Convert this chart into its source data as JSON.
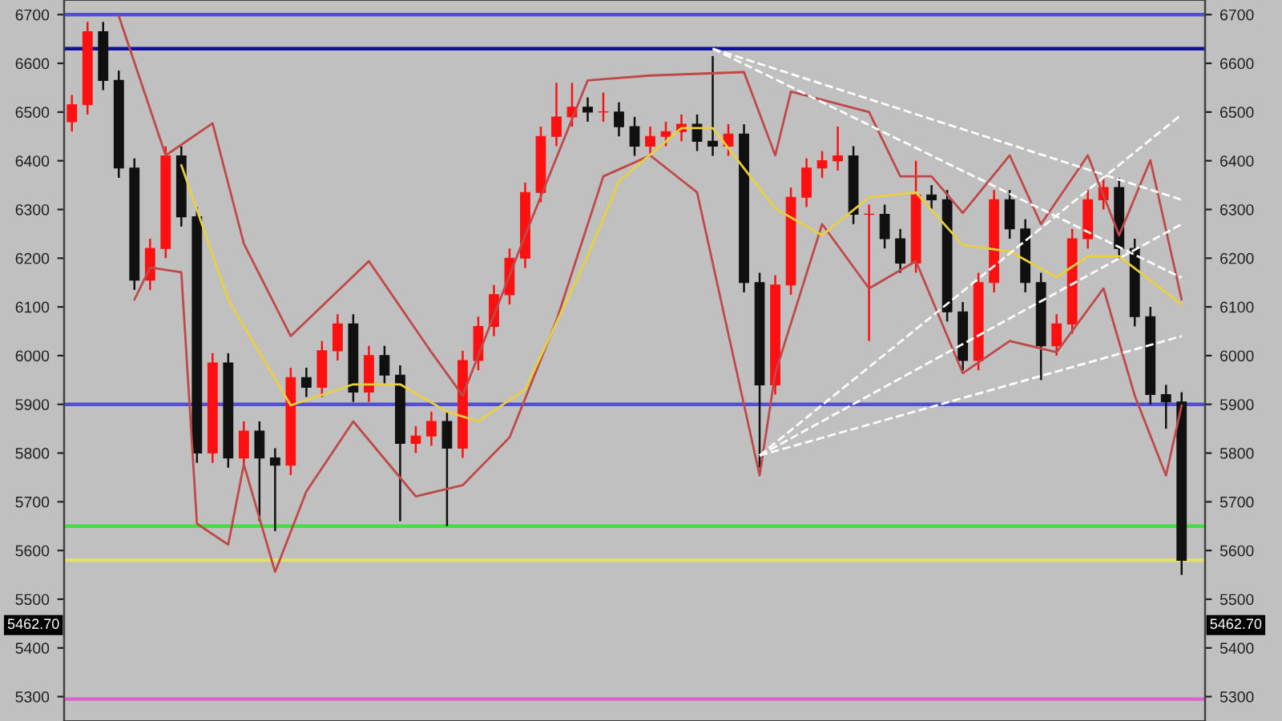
{
  "chart_data": {
    "type": "candlestick",
    "categories": [
      null,
      null,
      null,
      null,
      null,
      null,
      null,
      null,
      null,
      null,
      null,
      null,
      null,
      null,
      null,
      null,
      null,
      null,
      null,
      null,
      null,
      null,
      null,
      null,
      null,
      null,
      null,
      null,
      null,
      null,
      null,
      null,
      null,
      null,
      null,
      null,
      null,
      null,
      null,
      null,
      null,
      null,
      null,
      null,
      null,
      null,
      null,
      null,
      null,
      null,
      null,
      null,
      null,
      null,
      null,
      null,
      null,
      null,
      null,
      null,
      null,
      null,
      null,
      null,
      null,
      null,
      null,
      null,
      null,
      null,
      null,
      null
    ],
    "ohlc": [
      [
        6480,
        6535,
        6460,
        6515
      ],
      [
        6515,
        6685,
        6495,
        6665
      ],
      [
        6665,
        6685,
        6545,
        6565
      ],
      [
        6565,
        6585,
        6365,
        6385
      ],
      [
        6385,
        6405,
        6135,
        6155
      ],
      [
        6155,
        6240,
        6135,
        6220
      ],
      [
        6220,
        6430,
        6200,
        6410
      ],
      [
        6410,
        6430,
        6265,
        6285
      ],
      [
        6285,
        6305,
        5780,
        5800
      ],
      [
        5800,
        6005,
        5780,
        5985
      ],
      [
        5985,
        6005,
        5770,
        5790
      ],
      [
        5790,
        5865,
        5770,
        5845
      ],
      [
        5845,
        5865,
        5660,
        5790
      ],
      [
        5790,
        5810,
        5640,
        5775
      ],
      [
        5775,
        5975,
        5755,
        5955
      ],
      [
        5955,
        5975,
        5915,
        5935
      ],
      [
        5935,
        6030,
        5915,
        6010
      ],
      [
        6010,
        6085,
        5990,
        6065
      ],
      [
        6065,
        6085,
        5905,
        5925
      ],
      [
        5925,
        6020,
        5905,
        6000
      ],
      [
        6000,
        6020,
        5940,
        5960
      ],
      [
        5960,
        5980,
        5660,
        5820
      ],
      [
        5820,
        5855,
        5800,
        5835
      ],
      [
        5835,
        5885,
        5815,
        5865
      ],
      [
        5865,
        5885,
        5650,
        5810
      ],
      [
        5810,
        6010,
        5790,
        5990
      ],
      [
        5990,
        6080,
        5970,
        6060
      ],
      [
        6060,
        6145,
        6040,
        6125
      ],
      [
        6125,
        6220,
        6105,
        6200
      ],
      [
        6200,
        6355,
        6180,
        6335
      ],
      [
        6335,
        6470,
        6315,
        6450
      ],
      [
        6450,
        6560,
        6430,
        6490
      ],
      [
        6490,
        6560,
        6470,
        6510
      ],
      [
        6510,
        6530,
        6480,
        6500
      ],
      [
        6500,
        6540,
        6480,
        6500
      ],
      [
        6500,
        6520,
        6450,
        6470
      ],
      [
        6470,
        6490,
        6410,
        6430
      ],
      [
        6430,
        6470,
        6410,
        6450
      ],
      [
        6450,
        6480,
        6430,
        6460
      ],
      [
        6460,
        6495,
        6440,
        6475
      ],
      [
        6475,
        6495,
        6420,
        6440
      ],
      [
        6440,
        6615,
        6410,
        6430
      ],
      [
        6430,
        6475,
        6410,
        6455
      ],
      [
        6455,
        6475,
        6130,
        6150
      ],
      [
        6150,
        6170,
        5770,
        5940
      ],
      [
        5940,
        6165,
        5920,
        6145
      ],
      [
        6145,
        6345,
        6125,
        6325
      ],
      [
        6325,
        6405,
        6305,
        6385
      ],
      [
        6385,
        6420,
        6365,
        6400
      ],
      [
        6400,
        6470,
        6380,
        6410
      ],
      [
        6410,
        6430,
        6270,
        6290
      ],
      [
        6290,
        6310,
        6030,
        6290
      ],
      [
        6290,
        6310,
        6220,
        6240
      ],
      [
        6240,
        6260,
        6170,
        6190
      ],
      [
        6190,
        6400,
        6170,
        6330
      ],
      [
        6330,
        6350,
        6300,
        6320
      ],
      [
        6320,
        6340,
        6070,
        6090
      ],
      [
        6090,
        6110,
        5970,
        5990
      ],
      [
        5990,
        6170,
        5970,
        6150
      ],
      [
        6150,
        6340,
        6130,
        6320
      ],
      [
        6320,
        6340,
        6240,
        6260
      ],
      [
        6260,
        6280,
        6130,
        6150
      ],
      [
        6150,
        6170,
        5950,
        6020
      ],
      [
        6020,
        6085,
        6000,
        6065
      ],
      [
        6065,
        6260,
        6045,
        6240
      ],
      [
        6240,
        6340,
        6220,
        6320
      ],
      [
        6320,
        6365,
        6300,
        6345
      ],
      [
        6345,
        6365,
        6200,
        6220
      ],
      [
        6220,
        6240,
        6060,
        6080
      ],
      [
        6080,
        6100,
        5900,
        5920
      ],
      [
        5920,
        5940,
        5850,
        5905
      ],
      [
        5905,
        5925,
        5550,
        5580
      ]
    ],
    "series": [
      {
        "type": "line",
        "color": "#c04848",
        "values": [
          null,
          null,
          null,
          6697,
          null,
          null,
          6411,
          null,
          null,
          6477,
          null,
          6230,
          null,
          null,
          6040,
          null,
          null,
          null,
          null,
          6194,
          null,
          null,
          null,
          6007,
          null,
          5918,
          null,
          null,
          null,
          6247,
          null,
          null,
          null,
          6565,
          null,
          null,
          null,
          6575,
          null,
          null,
          null,
          null,
          null,
          6582,
          null,
          6411,
          6542,
          null,
          null,
          null,
          null,
          6500,
          null,
          6368,
          null,
          6368,
          null,
          6293,
          null,
          null,
          6411,
          null,
          6270,
          null,
          null,
          6411,
          null,
          6247,
          null,
          6401,
          null,
          6115
        ]
      },
      {
        "type": "line",
        "color": "#c04848",
        "values": [
          null,
          null,
          null,
          null,
          6115,
          6181,
          null,
          6171,
          5655,
          null,
          5612,
          5777,
          null,
          5556,
          null,
          5721,
          null,
          null,
          5865,
          null,
          null,
          null,
          5711,
          null,
          null,
          5734,
          null,
          null,
          5832,
          null,
          null,
          6072,
          null,
          null,
          6368,
          null,
          null,
          6411,
          null,
          null,
          6335,
          null,
          null,
          null,
          5754,
          5964,
          null,
          null,
          6270,
          null,
          null,
          6138,
          null,
          null,
          6194,
          null,
          null,
          5964,
          null,
          null,
          6030,
          null,
          null,
          6007,
          null,
          null,
          6138,
          null,
          5918,
          null,
          5754,
          5898
        ]
      },
      {
        "type": "line",
        "color": "#e8d040",
        "values": [
          null,
          null,
          null,
          null,
          null,
          null,
          null,
          6391,
          null,
          null,
          6115,
          null,
          null,
          null,
          5898,
          null,
          null,
          null,
          5941,
          null,
          null,
          5941,
          null,
          null,
          5885,
          null,
          5865,
          null,
          null,
          5931,
          null,
          null,
          null,
          6204,
          null,
          6358,
          null,
          null,
          null,
          6467,
          null,
          6467,
          null,
          null,
          null,
          6302,
          null,
          null,
          6247,
          null,
          null,
          6325,
          null,
          null,
          6335,
          null,
          null,
          6227,
          null,
          null,
          6214,
          null,
          null,
          6161,
          null,
          6204,
          null,
          6204,
          null,
          null,
          null,
          6105
        ]
      },
      {
        "type": "line",
        "color": "#ffffff",
        "line_style": "dashed",
        "values": [
          null,
          null,
          null,
          null,
          null,
          null,
          null,
          null,
          null,
          null,
          null,
          null,
          null,
          null,
          null,
          null,
          null,
          null,
          null,
          null,
          null,
          null,
          null,
          null,
          null,
          null,
          null,
          null,
          null,
          null,
          null,
          null,
          null,
          null,
          null,
          null,
          null,
          null,
          null,
          null,
          null,
          6630,
          null,
          null,
          null,
          null,
          null,
          null,
          null,
          null,
          null,
          null,
          null,
          null,
          null,
          null,
          null,
          null,
          null,
          null,
          null,
          null,
          null,
          null,
          null,
          null,
          null,
          null,
          null,
          null,
          null,
          6320
        ]
      },
      {
        "type": "line",
        "color": "#ffffff",
        "line_style": "dashed",
        "values": [
          null,
          null,
          null,
          null,
          null,
          null,
          null,
          null,
          null,
          null,
          null,
          null,
          null,
          null,
          null,
          null,
          null,
          null,
          null,
          null,
          null,
          null,
          null,
          null,
          null,
          null,
          null,
          null,
          null,
          null,
          null,
          null,
          null,
          null,
          null,
          null,
          null,
          null,
          null,
          null,
          null,
          6630,
          null,
          null,
          null,
          null,
          null,
          null,
          null,
          null,
          null,
          null,
          null,
          null,
          null,
          null,
          null,
          null,
          null,
          null,
          null,
          null,
          null,
          null,
          null,
          null,
          null,
          null,
          null,
          null,
          null,
          6160
        ]
      },
      {
        "type": "line",
        "color": "#ffffff",
        "line_style": "dashed",
        "values": [
          null,
          null,
          null,
          null,
          null,
          null,
          null,
          null,
          null,
          null,
          null,
          null,
          null,
          null,
          null,
          null,
          null,
          null,
          null,
          null,
          null,
          null,
          null,
          null,
          null,
          null,
          null,
          null,
          null,
          null,
          null,
          null,
          null,
          null,
          null,
          null,
          null,
          null,
          null,
          null,
          null,
          null,
          null,
          null,
          5795,
          null,
          null,
          null,
          null,
          null,
          null,
          null,
          null,
          null,
          null,
          null,
          null,
          null,
          null,
          null,
          null,
          null,
          null,
          null,
          null,
          null,
          null,
          null,
          null,
          null,
          null,
          6495
        ]
      },
      {
        "type": "line",
        "color": "#ffffff",
        "line_style": "dashed",
        "values": [
          null,
          null,
          null,
          null,
          null,
          null,
          null,
          null,
          null,
          null,
          null,
          null,
          null,
          null,
          null,
          null,
          null,
          null,
          null,
          null,
          null,
          null,
          null,
          null,
          null,
          null,
          null,
          null,
          null,
          null,
          null,
          null,
          null,
          null,
          null,
          null,
          null,
          null,
          null,
          null,
          null,
          null,
          null,
          null,
          5795,
          null,
          null,
          null,
          null,
          null,
          null,
          null,
          null,
          null,
          null,
          null,
          null,
          null,
          null,
          null,
          null,
          null,
          null,
          null,
          null,
          null,
          null,
          null,
          null,
          null,
          null,
          6270
        ]
      },
      {
        "type": "line",
        "color": "#ffffff",
        "line_style": "dashed",
        "values": [
          null,
          null,
          null,
          null,
          null,
          null,
          null,
          null,
          null,
          null,
          null,
          null,
          null,
          null,
          null,
          null,
          null,
          null,
          null,
          null,
          null,
          null,
          null,
          null,
          null,
          null,
          null,
          null,
          null,
          null,
          null,
          null,
          null,
          null,
          null,
          null,
          null,
          null,
          null,
          null,
          null,
          null,
          null,
          null,
          5795,
          null,
          null,
          null,
          null,
          null,
          null,
          null,
          null,
          null,
          null,
          null,
          null,
          null,
          null,
          null,
          null,
          null,
          null,
          null,
          null,
          null,
          null,
          null,
          null,
          null,
          null,
          6040
        ]
      }
    ],
    "ref_lines": [
      {
        "axis": "y",
        "value": 6700,
        "color": "#5050d0"
      },
      {
        "axis": "y",
        "value": 6630,
        "color": "#1010a0"
      },
      {
        "axis": "y",
        "value": 5900,
        "color": "#5050d0"
      },
      {
        "axis": "y",
        "value": 5650,
        "color": "#40e040"
      },
      {
        "axis": "y",
        "value": 5580,
        "color": "#e0e070"
      },
      {
        "axis": "y",
        "value": 5295,
        "color": "#e060d0"
      }
    ],
    "annotations": [
      "5462.70"
    ],
    "ylim": [
      5250,
      6730
    ],
    "yticks": [
      5300,
      5400,
      5500,
      5600,
      5700,
      5800,
      5900,
      6000,
      6100,
      6200,
      6300,
      6400,
      6500,
      6600,
      6700
    ],
    "y2lim": [
      5250,
      6730
    ],
    "y2ticks": [
      5300,
      5400,
      5500,
      5600,
      5700,
      5800,
      5900,
      6000,
      6100,
      6200,
      6300,
      6400,
      6500,
      6600,
      6700
    ],
    "tick_labels": "y",
    "grid": false,
    "legend": false
  }
}
